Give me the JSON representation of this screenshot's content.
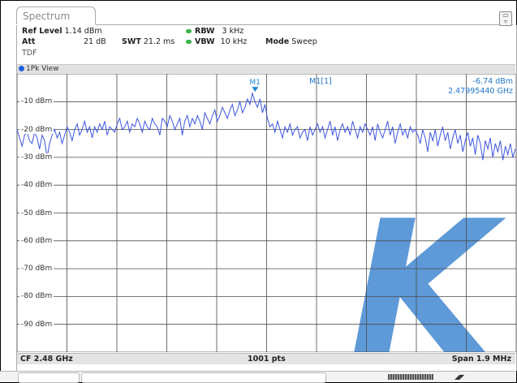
{
  "tab": {
    "label": "Spectrum"
  },
  "header": {
    "ref_level_label": "Ref Level",
    "ref_level_value": "1.14 dBm",
    "att_label": "Att",
    "att_value": "21 dB",
    "swt_label": "SWT",
    "swt_value": "21.2 ms",
    "rbw_label": "RBW",
    "rbw_value": "3 kHz",
    "vbw_label": "VBW",
    "vbw_value": "10 kHz",
    "mode_label": "Mode",
    "mode_value": "Sweep",
    "tdf": "TDF"
  },
  "view": {
    "label": "1Pk View"
  },
  "marker": {
    "name": "M1",
    "readout_label": "M1[1]",
    "level": "-6.74 dBm",
    "frequency": "2.47995440 GHz",
    "x_fraction": 0.477,
    "level_db": -6.74
  },
  "y_axis": {
    "labels": [
      "-10 dBm",
      "-20 dBm",
      "-30 dBm",
      "-40 dBm",
      "-50 dBm",
      "-60 dBm",
      "-70 dBm",
      "-80 dBm",
      "-90 dBm"
    ],
    "top_db": 0,
    "bottom_db": -100
  },
  "footer": {
    "center": "CF 2.48 GHz",
    "points": "1001 pts",
    "span": "Span 1.9 MHz"
  },
  "colors": {
    "trace": "#3d56e0",
    "marker": "#1e88d8",
    "watermark": "#4d8fd4",
    "grid": "#4a4a4a"
  },
  "chart_data": {
    "type": "line",
    "title": "",
    "xlabel": "",
    "ylabel": "",
    "x_range": [
      "CF 2.48 GHz - 0.95 MHz",
      "CF 2.48 GHz + 0.95 MHz"
    ],
    "ylim": [
      -100,
      0
    ],
    "grid": true,
    "series": [
      {
        "values": [
          -20,
          -23,
          -26,
          -22,
          -21,
          -24,
          -25,
          -21,
          -23,
          -27,
          -22,
          -24,
          -30,
          -25,
          -22,
          -20,
          -23,
          -21,
          -25,
          -22,
          -19,
          -21,
          -24,
          -20,
          -18,
          -22,
          -20,
          -17,
          -21,
          -19,
          -23,
          -19,
          -21,
          -18,
          -20,
          -17,
          -22,
          -19,
          -20,
          -21,
          -18,
          -16,
          -20,
          -19,
          -17,
          -21,
          -18,
          -19,
          -16,
          -18,
          -21,
          -17,
          -19,
          -20,
          -16,
          -18,
          -19,
          -22,
          -16,
          -17,
          -19,
          -15,
          -17,
          -20,
          -18,
          -16,
          -22,
          -17,
          -15,
          -19,
          -16,
          -18,
          -15,
          -17,
          -20,
          -14,
          -16,
          -18,
          -15,
          -13,
          -17,
          -15,
          -12,
          -14,
          -16,
          -13,
          -11,
          -15,
          -13,
          -10,
          -14,
          -12,
          -9,
          -11,
          -7,
          -10,
          -12,
          -9,
          -14,
          -11,
          -16,
          -19,
          -18,
          -21,
          -17,
          -20,
          -23,
          -19,
          -21,
          -18,
          -22,
          -20,
          -19,
          -23,
          -21,
          -20,
          -24,
          -19,
          -22,
          -20,
          -18,
          -21,
          -19,
          -23,
          -20,
          -17,
          -22,
          -19,
          -24,
          -20,
          -18,
          -21,
          -19,
          -22,
          -17,
          -20,
          -23,
          -19,
          -21,
          -18,
          -20,
          -22,
          -19,
          -24,
          -18,
          -21,
          -23,
          -20,
          -17,
          -22,
          -19,
          -25,
          -21,
          -18,
          -22,
          -20,
          -23,
          -19,
          -21,
          -20,
          -22,
          -25,
          -20,
          -23,
          -28,
          -21,
          -24,
          -20,
          -26,
          -22,
          -19,
          -24,
          -21,
          -27,
          -23,
          -20,
          -25,
          -22,
          -28,
          -24,
          -21,
          -26,
          -23,
          -29,
          -22,
          -25,
          -31,
          -24,
          -27,
          -23,
          -30,
          -25,
          -28,
          -24,
          -31,
          -26,
          -29,
          -25,
          -30,
          -27
        ]
      }
    ]
  }
}
